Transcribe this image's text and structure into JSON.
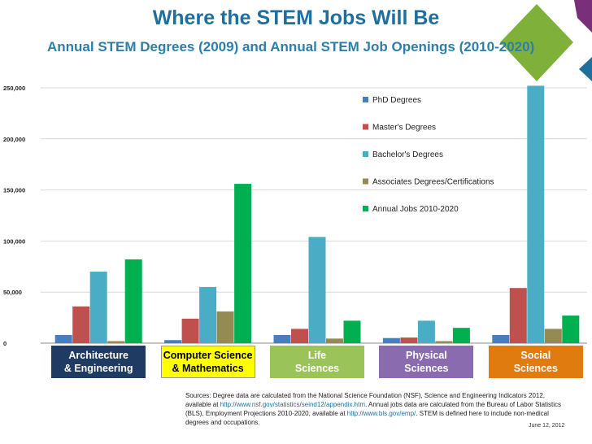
{
  "header": {
    "title": "Where the STEM Jobs Will Be",
    "subtitle": "Annual STEM Degrees (2009) and Annual STEM Job Openings (2010-2020)"
  },
  "chart_data": {
    "type": "bar",
    "title": "Where the STEM Jobs Will Be",
    "subtitle": "Annual STEM Degrees (2009) and Annual STEM Job Openings (2010-2020)",
    "categories": [
      "Architecture\n& Engineering",
      "Computer Science\n& Mathematics",
      "Life\nSciences",
      "Physical\nSciences",
      "Social\nSciences"
    ],
    "category_colors": [
      "#1f3b63",
      "#ffff00",
      "#9ac35a",
      "#8a6bb0",
      "#e07b10"
    ],
    "category_text_colors": [
      "#ffffff",
      "#000000",
      "#ffffff",
      "#ffffff",
      "#ffffff"
    ],
    "series": [
      {
        "name": "PhD Degrees",
        "color": "#4a7ebb",
        "values": [
          8000,
          3000,
          8000,
          5000,
          8000
        ]
      },
      {
        "name": "Master's Degrees",
        "color": "#c0504d",
        "values": [
          36000,
          24000,
          14000,
          5500,
          54000
        ]
      },
      {
        "name": "Bachelor's Degrees",
        "color": "#4bacc6",
        "values": [
          70000,
          55000,
          104000,
          22000,
          252000
        ]
      },
      {
        "name": "Associates Degrees/Certifications",
        "color": "#948a54",
        "values": [
          2000,
          31000,
          4500,
          2000,
          14000
        ]
      },
      {
        "name": "Annual Jobs 2010-2020",
        "color": "#00b050",
        "values": [
          82000,
          156000,
          22000,
          15000,
          27000
        ]
      }
    ],
    "ylim": [
      0,
      250000
    ],
    "yticks": [
      "0",
      "50,000",
      "100,000",
      "150,000",
      "200,000",
      "250,000"
    ],
    "ytick_values": [
      0,
      50000,
      100000,
      150000,
      200000,
      250000
    ],
    "legend_position": "top-right",
    "xlabel": "",
    "ylabel": ""
  },
  "footer": {
    "sources_pre": "Sources: Degree data are calculated from the National Science Foundation (NSF), Science and Engineering Indicators 2012, available at ",
    "sources_link1": "http://www.nsf.gov/statistics/seind12/appendix.htm",
    "sources_mid": ". Annual jobs data are calculated from the Bureau of Labor Statistics (BLS), Employment Projections 2010-2020, available at ",
    "sources_link2": "http://www.bls.gov/emp/",
    "sources_post": ". STEM is defined here to include non-medical degrees and occupations.",
    "date": "June 12, 2012"
  }
}
